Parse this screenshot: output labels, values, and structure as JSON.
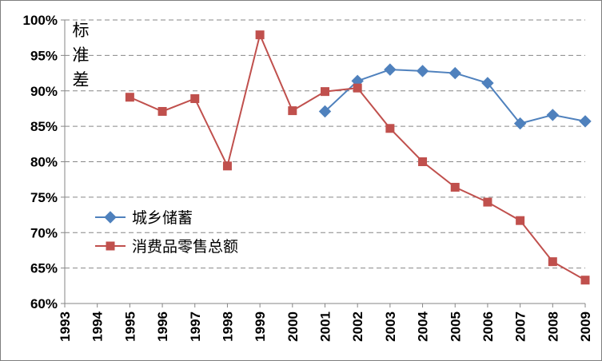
{
  "chart_data": {
    "type": "line",
    "title": "",
    "xlabel": "",
    "ylabel": "标准差",
    "ylim": [
      0.6,
      1.0
    ],
    "yticks": [
      "60%",
      "65%",
      "70%",
      "75%",
      "80%",
      "85%",
      "90%",
      "95%",
      "100%"
    ],
    "categories": [
      "1993",
      "1994",
      "1995",
      "1996",
      "1997",
      "1998",
      "1999",
      "2000",
      "2001",
      "2002",
      "2003",
      "2004",
      "2005",
      "2006",
      "2007",
      "2008",
      "2009"
    ],
    "grid": true,
    "legend_position": "lower-left",
    "series": [
      {
        "name": "城乡储蓄",
        "color": "#4f81bd",
        "marker": "diamond",
        "values": [
          null,
          null,
          null,
          null,
          null,
          null,
          null,
          null,
          0.871,
          0.914,
          0.93,
          0.928,
          0.925,
          0.911,
          0.854,
          0.866,
          0.857
        ]
      },
      {
        "name": "消费品零售总额",
        "color": "#c0504d",
        "marker": "square",
        "values": [
          null,
          null,
          0.891,
          0.871,
          0.889,
          0.794,
          0.979,
          0.872,
          0.899,
          0.904,
          0.847,
          0.8,
          0.764,
          0.743,
          0.717,
          0.659,
          0.633
        ]
      }
    ]
  }
}
